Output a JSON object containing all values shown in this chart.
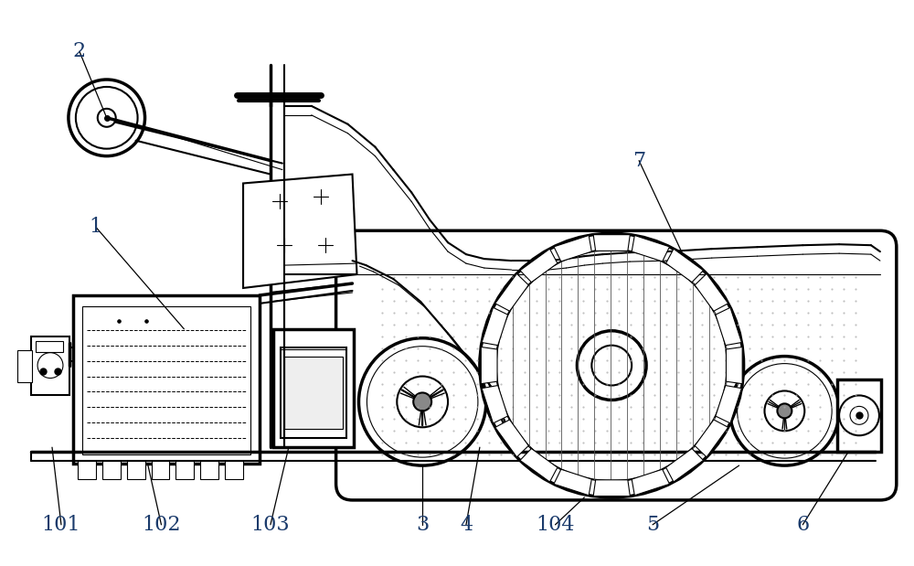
{
  "bg_color": "#ffffff",
  "line_color": "#000000",
  "label_color": "#1a3a6b",
  "fig_width": 10.0,
  "fig_height": 6.19,
  "dpi": 100,
  "label_fontsize": 16
}
